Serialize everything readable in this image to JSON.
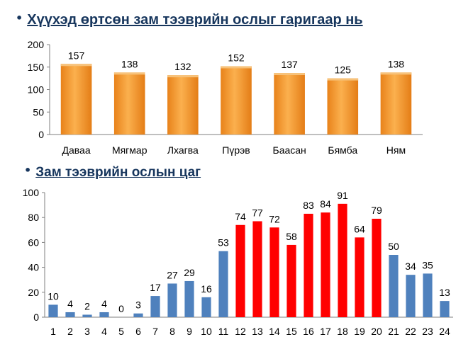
{
  "headings": {
    "weekly": "Хүүхэд өртсөн зам тээврийн ослыг гаригаар нь",
    "hourly": "Зам тээврийн ослын цаг"
  },
  "chart_data": [
    {
      "type": "bar",
      "title": "Хүүхэд өртсөн зам тээврийн ослыг гаригаар нь",
      "categories": [
        "Даваа",
        "Мягмар",
        "Лхагва",
        "Пүрэв",
        "Баасан",
        "Бямба",
        "Ням"
      ],
      "values": [
        157,
        138,
        132,
        152,
        137,
        125,
        138
      ],
      "ylim": [
        0,
        200
      ],
      "yticks": [
        0,
        50,
        100,
        150,
        200
      ],
      "bar_color": "#f29a2e",
      "grid": false,
      "data_labels": true
    },
    {
      "type": "bar",
      "title": "Зам тээврийн ослын цаг",
      "categories": [
        "1",
        "2",
        "3",
        "4",
        "5",
        "6",
        "7",
        "8",
        "9",
        "10",
        "11",
        "12",
        "13",
        "14",
        "15",
        "16",
        "17",
        "18",
        "19",
        "20",
        "21",
        "22",
        "23",
        "24"
      ],
      "values": [
        10,
        4,
        2,
        4,
        0,
        3,
        17,
        27,
        29,
        16,
        53,
        74,
        77,
        72,
        58,
        83,
        84,
        91,
        64,
        79,
        50,
        34,
        35,
        13
      ],
      "highlight": [
        false,
        false,
        false,
        false,
        false,
        false,
        false,
        false,
        false,
        false,
        false,
        true,
        true,
        true,
        true,
        true,
        true,
        true,
        true,
        true,
        false,
        false,
        false,
        false
      ],
      "ylim": [
        0,
        100
      ],
      "yticks": [
        0,
        20,
        40,
        60,
        80,
        100
      ],
      "bar_color": "#4f81bd",
      "highlight_color": "#ff0000",
      "grid": false,
      "data_labels": true
    }
  ]
}
